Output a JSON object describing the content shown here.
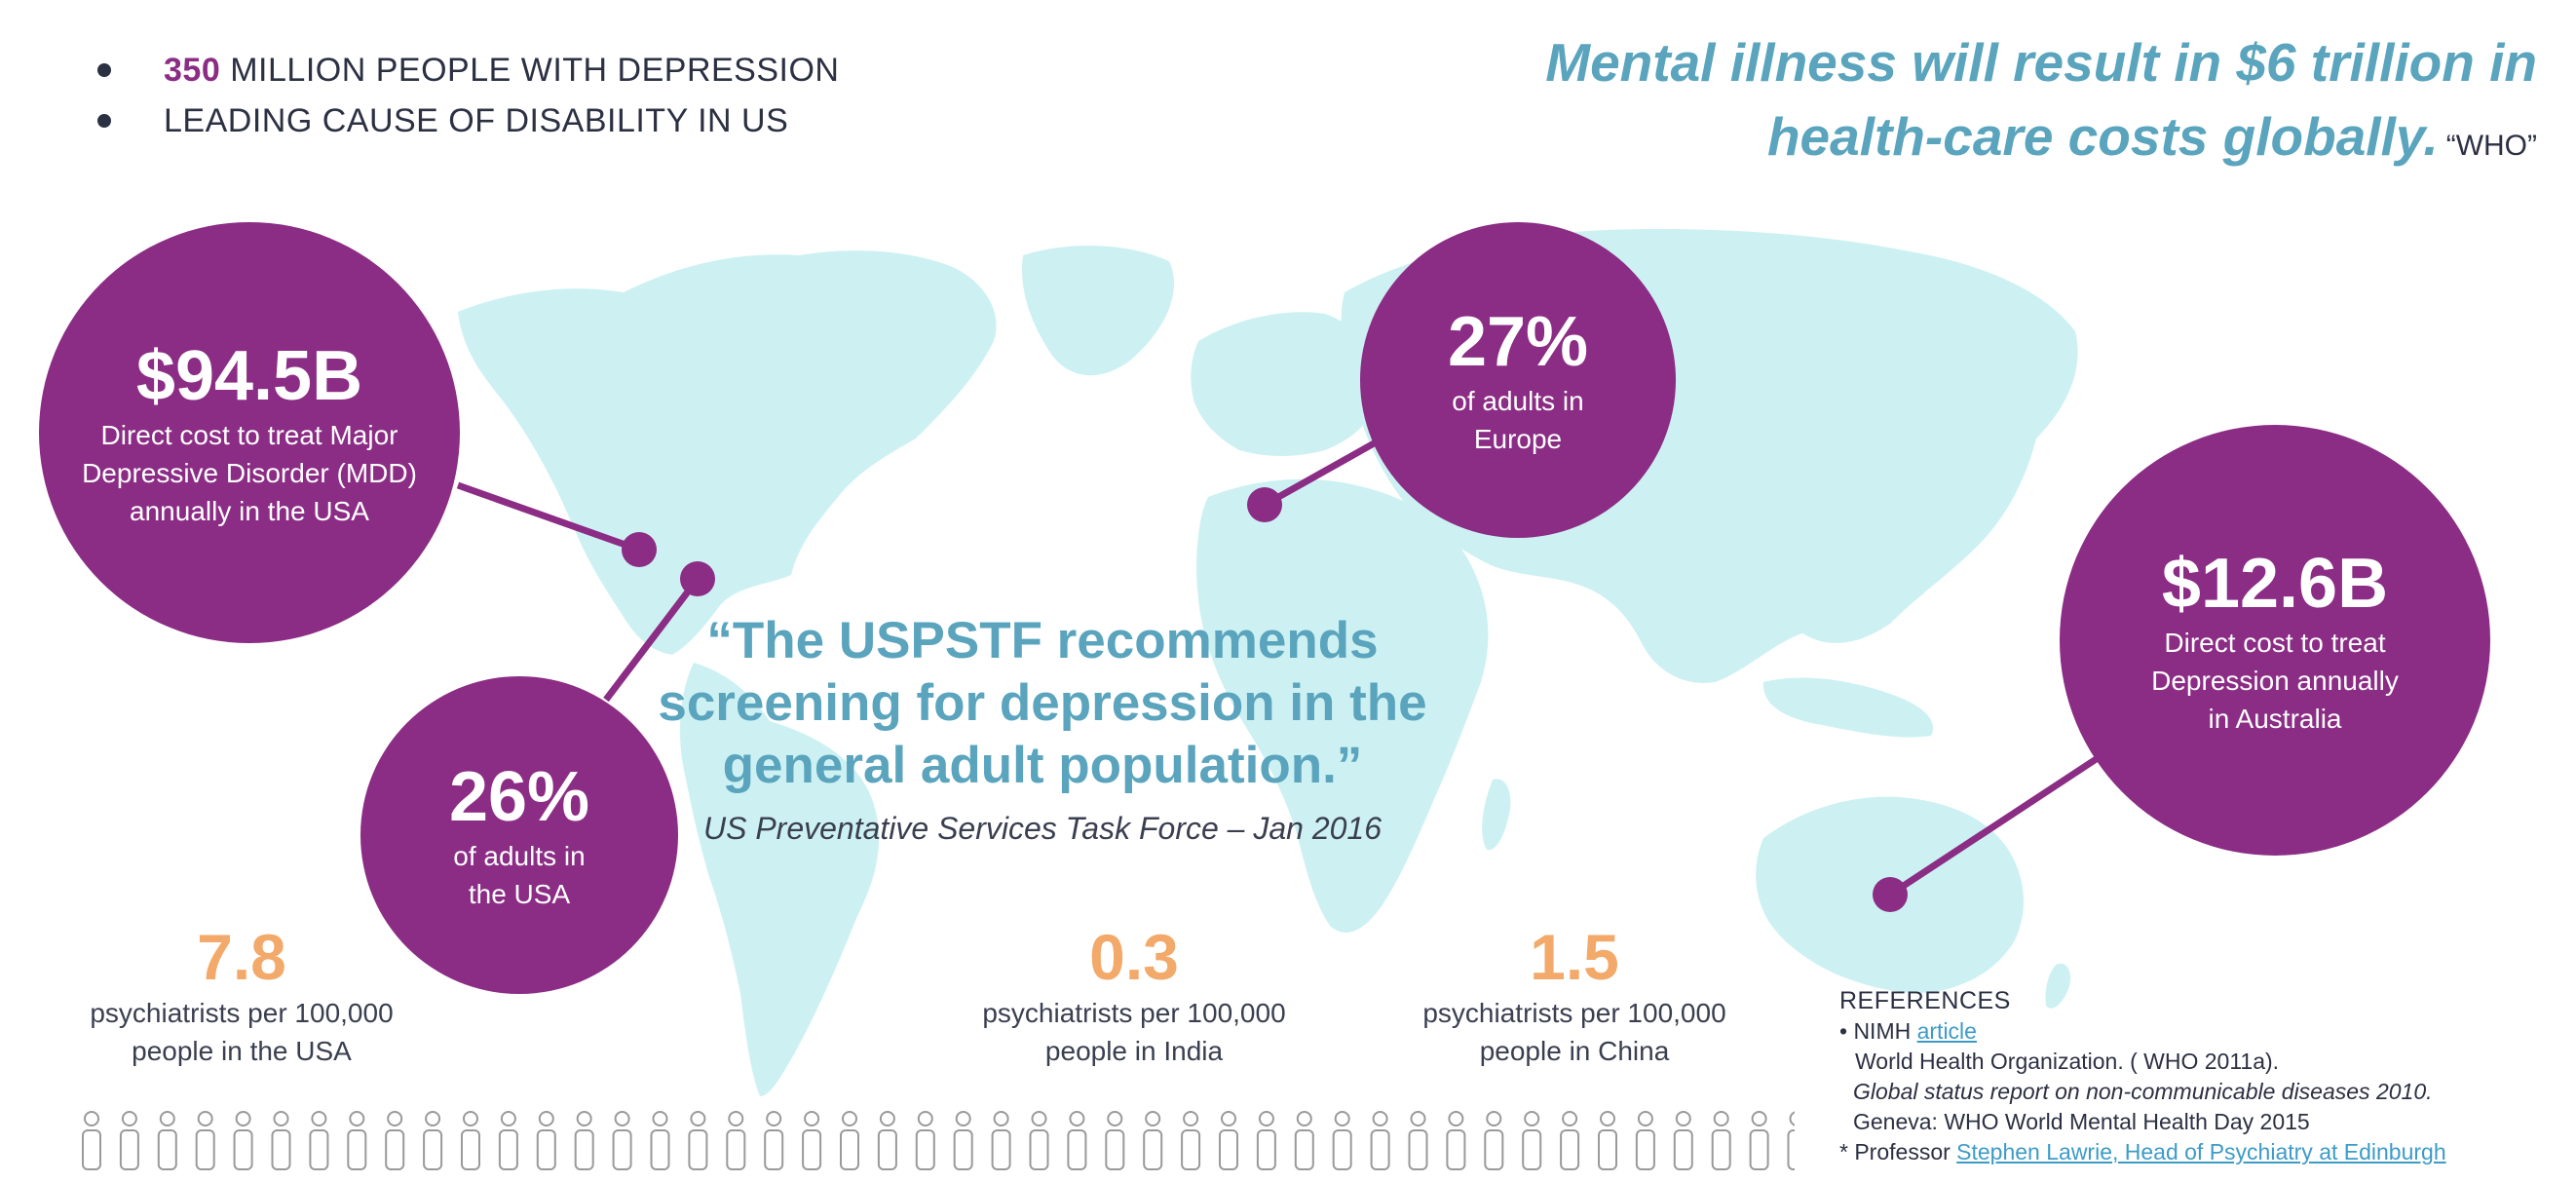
{
  "bullets": [
    {
      "highlight": "350",
      "text": "MILLION PEOPLE WITH DEPRESSION"
    },
    {
      "highlight": "",
      "text": "LEADING CAUSE OF DISABILITY IN US"
    }
  ],
  "who_quote": {
    "line1": "Mental illness will result in $6 trillion in",
    "line2": "health-care costs globally.",
    "source": "“WHO”"
  },
  "circles": [
    {
      "value": "$94.5B",
      "text": "Direct cost to treat Major\nDepressive Disorder (MDD)\nannually in the USA"
    },
    {
      "value": "26%",
      "text": "of adults in\nthe USA"
    },
    {
      "value": "27%",
      "text": "of adults in\nEurope"
    },
    {
      "value": "$12.6B",
      "text": "Direct cost to treat\nDepression annually\nin Australia"
    }
  ],
  "quote": {
    "text": "“The USPSTF recommends screening for depression in the general adult population.”",
    "source": "US Preventative Services Task Force – Jan 2016"
  },
  "stats": [
    {
      "value": "7.8",
      "text": "psychiatrists per 100,000\npeople in the USA"
    },
    {
      "value": "0.3",
      "text": "psychiatrists per 100,000\npeople in India"
    },
    {
      "value": "1.5",
      "text": "psychiatrists per 100,000\npeople in China"
    }
  ],
  "references": {
    "title": "REFERENCES",
    "line1_prefix": "• NIMH ",
    "line1_link": "article",
    "line2": "World Health Organization. ( WHO 2011a).",
    "line3": "Global status report on non-communicable diseases 2010.",
    "line4": "Geneva:  WHO World Mental Health Day 2015",
    "line5_prefix": "* Professor ",
    "line5_link": "Stephen Lawrie, Head of Psychiatry at Edinburgh"
  },
  "colors": {
    "purple": "#8b2c85",
    "teal": "#5aa4bd",
    "orange": "#f2a96a",
    "map": "#cdf1f2"
  },
  "icons": {
    "people": "person-outline-icon",
    "map": "world-map-graphic"
  }
}
